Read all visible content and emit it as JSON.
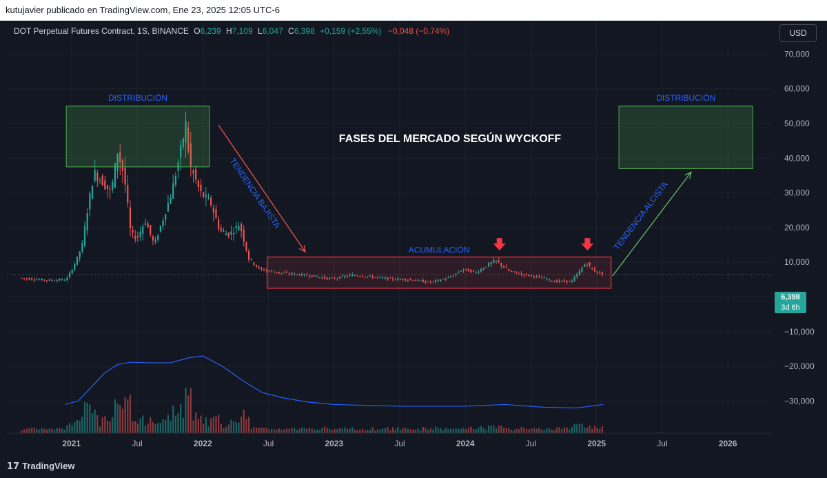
{
  "header": {
    "publisher": "kutujavier publicado en TradingView.com, Ene 23, 2025 12:05 UTC-6"
  },
  "legend": {
    "symbol": "DOT Perpetual Futures Contract, 1S, BINANCE",
    "o_label": "O",
    "o_value": "6,239",
    "h_label": "H",
    "h_value": "7,109",
    "l_label": "L",
    "l_value": "6,047",
    "c_label": "C",
    "c_value": "6,398",
    "change": "+0,159 (+2,55%)",
    "change2": "−0,048 (−0,74%)"
  },
  "currency_button": "USD",
  "price_tag": {
    "price": "6,398",
    "countdown": "3d 6h"
  },
  "footer": {
    "logo_glyph": "17",
    "brand": "TradingView"
  },
  "colors": {
    "background": "#131722",
    "up": "#26a69a",
    "down": "#ef5350",
    "ma": "#2962ff",
    "range_box": "#f23645",
    "zone_box": "#4caf50",
    "annotation": "#2962ff"
  },
  "chart_data": {
    "type": "candlestick",
    "title": "FASES DEL MERCADO SEGÚN WYCKOFF",
    "xlabel": "",
    "ylabel": "",
    "ylim": [
      -33,
      78
    ],
    "y_ticks": [
      {
        "value": 70,
        "label": "70,000"
      },
      {
        "value": 60,
        "label": "60,000"
      },
      {
        "value": 50,
        "label": "50,000"
      },
      {
        "value": 40,
        "label": "40,000"
      },
      {
        "value": 30,
        "label": "30,000"
      },
      {
        "value": 20,
        "label": "20,000"
      },
      {
        "value": 10,
        "label": "10,000"
      },
      {
        "value": 0,
        "label": "0,000"
      },
      {
        "value": -10,
        "label": "−10,000"
      },
      {
        "value": -20,
        "label": "−20,000"
      },
      {
        "value": -30,
        "label": "−30,000"
      }
    ],
    "x_ticks": [
      {
        "year": 2021.0,
        "label": "2021",
        "major": true
      },
      {
        "year": 2021.5,
        "label": "Jul",
        "major": false
      },
      {
        "year": 2022.0,
        "label": "2022",
        "major": true
      },
      {
        "year": 2022.5,
        "label": "Jul",
        "major": false
      },
      {
        "year": 2023.0,
        "label": "2023",
        "major": true
      },
      {
        "year": 2023.5,
        "label": "Jul",
        "major": false
      },
      {
        "year": 2024.0,
        "label": "2024",
        "major": true
      },
      {
        "year": 2024.5,
        "label": "Jul",
        "major": false
      },
      {
        "year": 2025.0,
        "label": "2025",
        "major": true
      },
      {
        "year": 2025.5,
        "label": "Jul",
        "major": false
      },
      {
        "year": 2026.0,
        "label": "2026",
        "major": true
      }
    ],
    "xlim": [
      2020.56,
      2026.23
    ],
    "grid": true,
    "last_price": 6.398,
    "price_path": [
      [
        2020.62,
        5.5
      ],
      [
        2020.7,
        5.2
      ],
      [
        2020.85,
        4.8
      ],
      [
        2020.98,
        5.0
      ],
      [
        2021.05,
        10
      ],
      [
        2021.1,
        15
      ],
      [
        2021.14,
        25
      ],
      [
        2021.19,
        36
      ],
      [
        2021.26,
        33
      ],
      [
        2021.32,
        30
      ],
      [
        2021.37,
        42
      ],
      [
        2021.42,
        35
      ],
      [
        2021.47,
        18
      ],
      [
        2021.52,
        17
      ],
      [
        2021.58,
        22
      ],
      [
        2021.65,
        15
      ],
      [
        2021.72,
        23
      ],
      [
        2021.78,
        30
      ],
      [
        2021.85,
        42
      ],
      [
        2021.89,
        50
      ],
      [
        2021.92,
        38
      ],
      [
        2022.0,
        30
      ],
      [
        2022.08,
        27
      ],
      [
        2022.15,
        19
      ],
      [
        2022.22,
        18
      ],
      [
        2022.3,
        21
      ],
      [
        2022.37,
        11
      ],
      [
        2022.45,
        8
      ],
      [
        2022.6,
        7
      ],
      [
        2022.8,
        6.3
      ],
      [
        2023.0,
        5.2
      ],
      [
        2023.15,
        6.3
      ],
      [
        2023.3,
        5.8
      ],
      [
        2023.45,
        5.2
      ],
      [
        2023.6,
        5.0
      ],
      [
        2023.75,
        4.2
      ],
      [
        2023.9,
        5.6
      ],
      [
        2024.0,
        8
      ],
      [
        2024.1,
        7
      ],
      [
        2024.2,
        9.5
      ],
      [
        2024.25,
        10.5
      ],
      [
        2024.35,
        7.5
      ],
      [
        2024.45,
        6.5
      ],
      [
        2024.55,
        6.0
      ],
      [
        2024.7,
        4.5
      ],
      [
        2024.83,
        4.5
      ],
      [
        2024.9,
        8
      ],
      [
        2024.94,
        10
      ],
      [
        2024.98,
        8
      ],
      [
        2025.06,
        6.4
      ]
    ],
    "ma_path": [
      [
        2020.95,
        -31
      ],
      [
        2021.05,
        -30
      ],
      [
        2021.15,
        -26
      ],
      [
        2021.25,
        -22
      ],
      [
        2021.35,
        -19.5
      ],
      [
        2021.45,
        -18.8
      ],
      [
        2021.6,
        -19.0
      ],
      [
        2021.75,
        -19.0
      ],
      [
        2021.9,
        -17.5
      ],
      [
        2022.0,
        -17
      ],
      [
        2022.15,
        -20
      ],
      [
        2022.3,
        -24
      ],
      [
        2022.45,
        -27.5
      ],
      [
        2022.6,
        -29
      ],
      [
        2022.8,
        -30.3
      ],
      [
        2023.0,
        -31
      ],
      [
        2023.5,
        -31.5
      ],
      [
        2024.0,
        -31.5
      ],
      [
        2024.3,
        -31
      ],
      [
        2024.6,
        -31.8
      ],
      [
        2024.85,
        -32
      ],
      [
        2025.05,
        -31
      ]
    ],
    "annotations": [
      {
        "text": "DISTRIBUCIÓN",
        "type": "zone",
        "x0": 2020.96,
        "x1": 2022.05,
        "y0": 37.5,
        "y1": 55
      },
      {
        "text": "DISTRIBUCIÓN",
        "type": "zone",
        "x0": 2025.17,
        "x1": 2026.19,
        "y0": 37,
        "y1": 55
      },
      {
        "text": "ACUMULACIÓN",
        "type": "range",
        "x0": 2022.49,
        "x1": 2025.11,
        "y0": 2.5,
        "y1": 11.5
      },
      {
        "text": "TENDENCIA BAJISTA",
        "type": "arrow",
        "from": [
          2022.12,
          49.5
        ],
        "to": [
          2022.78,
          13
        ]
      },
      {
        "text": "TENDENCIA ALCISTA",
        "type": "arrow",
        "from": [
          2025.12,
          6
        ],
        "to": [
          2025.72,
          36
        ]
      },
      {
        "text": "",
        "type": "marker",
        "x": 2024.26,
        "y": 13
      },
      {
        "text": "",
        "type": "marker",
        "x": 2024.93,
        "y": 13
      }
    ]
  }
}
